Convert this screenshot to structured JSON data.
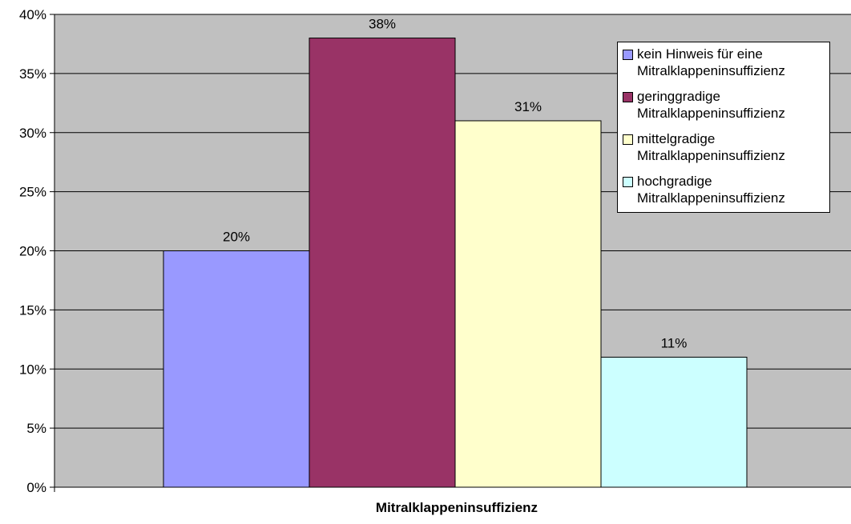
{
  "chart_data": {
    "type": "bar",
    "title": "",
    "xlabel": "Mitralklappeninsuffizienz",
    "ylabel": "",
    "ylim": [
      0,
      40
    ],
    "y_ticks": [
      "0%",
      "5%",
      "10%",
      "15%",
      "20%",
      "25%",
      "30%",
      "35%",
      "40%"
    ],
    "y_tick_values": [
      0,
      5,
      10,
      15,
      20,
      25,
      30,
      35,
      40
    ],
    "grid": true,
    "legend_position": "top-right",
    "series": [
      {
        "name": "kein Hinweis für eine\nMitralklappeninsuffizienz",
        "values": [
          20
        ],
        "label": "20%",
        "color": "#9999FF"
      },
      {
        "name": "geringgradige\nMitralklappeninsuffizienz",
        "values": [
          38
        ],
        "label": "38%",
        "color": "#993366"
      },
      {
        "name": "mittelgradige\nMitralklappeninsuffizienz",
        "values": [
          31
        ],
        "label": "31%",
        "color": "#FFFFCC"
      },
      {
        "name": "hochgradige\nMitralklappeninsuffizienz",
        "values": [
          11
        ],
        "label": "11%",
        "color": "#CCFFFF"
      }
    ],
    "plot_background": "#C0C0C0"
  }
}
